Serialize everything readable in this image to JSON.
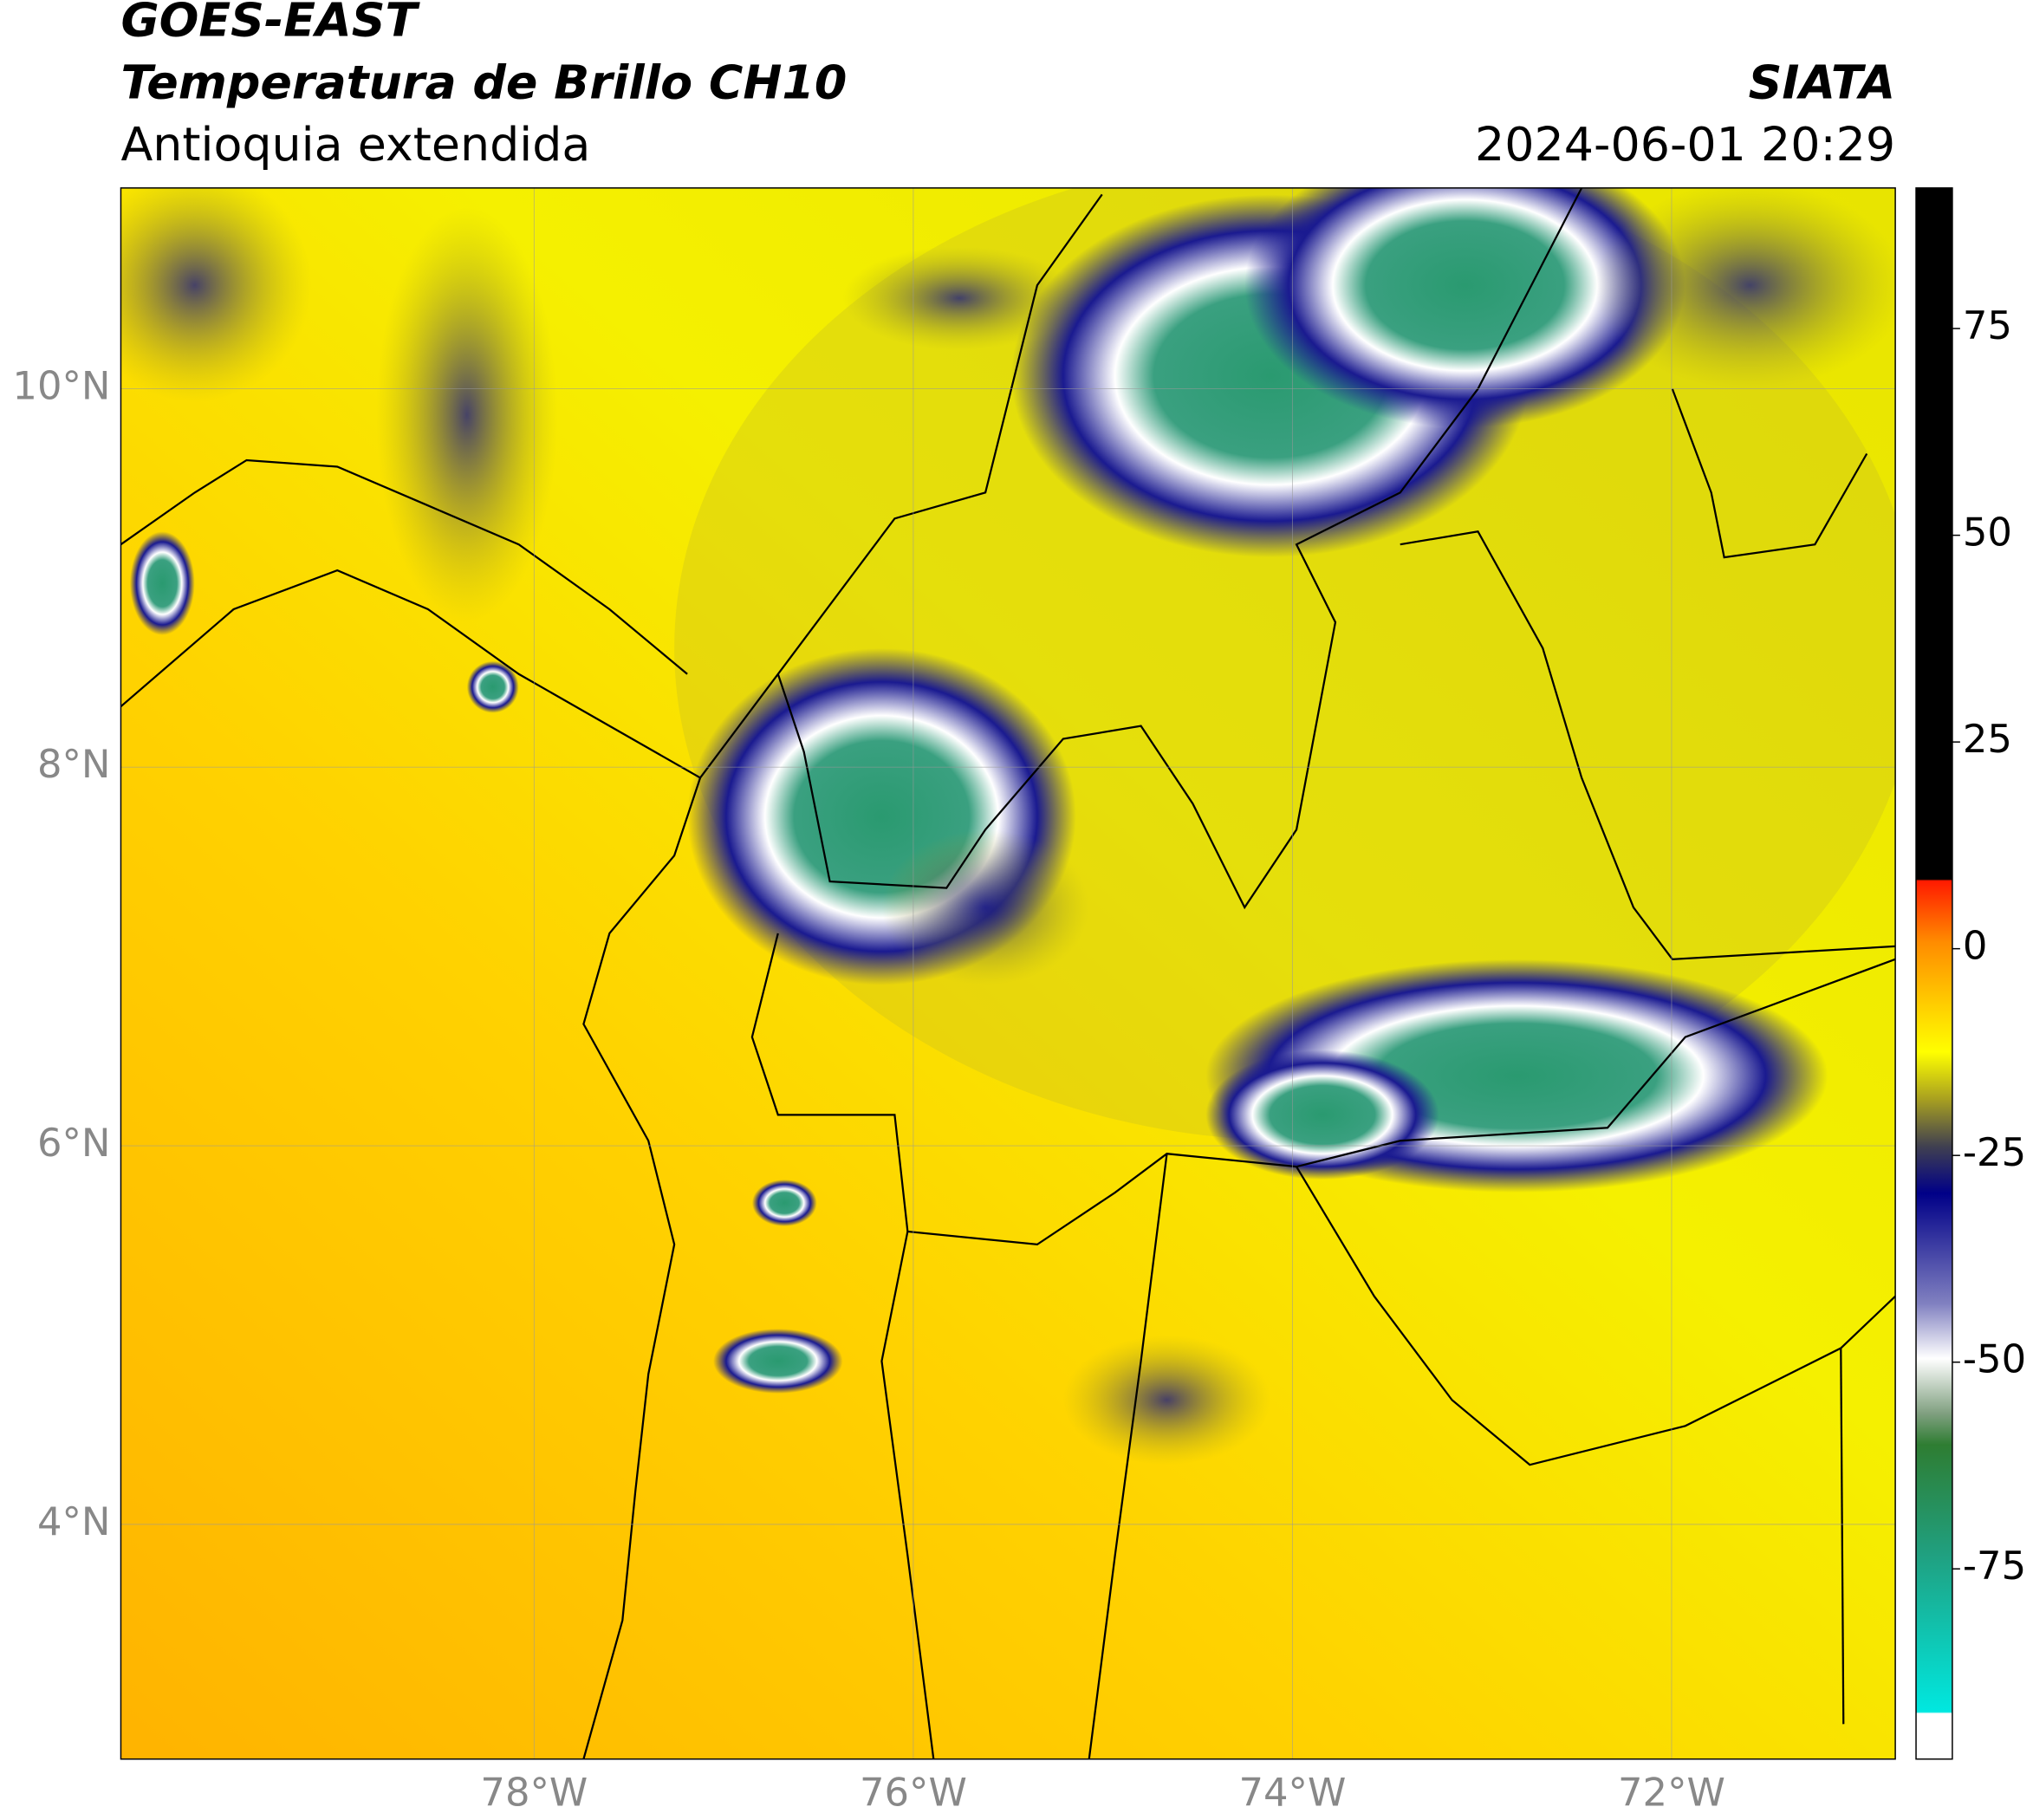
{
  "header": {
    "title": "GOES-EAST",
    "subtitle": "Temperatura de Brillo CH10",
    "region": "Antioquia extendida",
    "source": "SIATA",
    "datetime": "2024-06-01 20:29"
  },
  "map": {
    "xlim": [
      -80.18,
      -70.82
    ],
    "ylim": [
      2.76,
      11.06
    ],
    "xticks": [
      {
        "value": -78,
        "label": "78°W"
      },
      {
        "value": -76,
        "label": "76°W"
      },
      {
        "value": -74,
        "label": "74°W"
      },
      {
        "value": -72,
        "label": "72°W"
      }
    ],
    "yticks": [
      {
        "value": 10,
        "label": "10°N"
      },
      {
        "value": 8,
        "label": "8°N"
      },
      {
        "value": 6,
        "label": "6°N"
      },
      {
        "value": 4,
        "label": "4°N"
      }
    ],
    "grid": true
  },
  "colorbar": {
    "lim": [
      -98,
      92
    ],
    "ticks": [
      75,
      50,
      25,
      0,
      -25,
      -50,
      -75
    ]
  }
}
